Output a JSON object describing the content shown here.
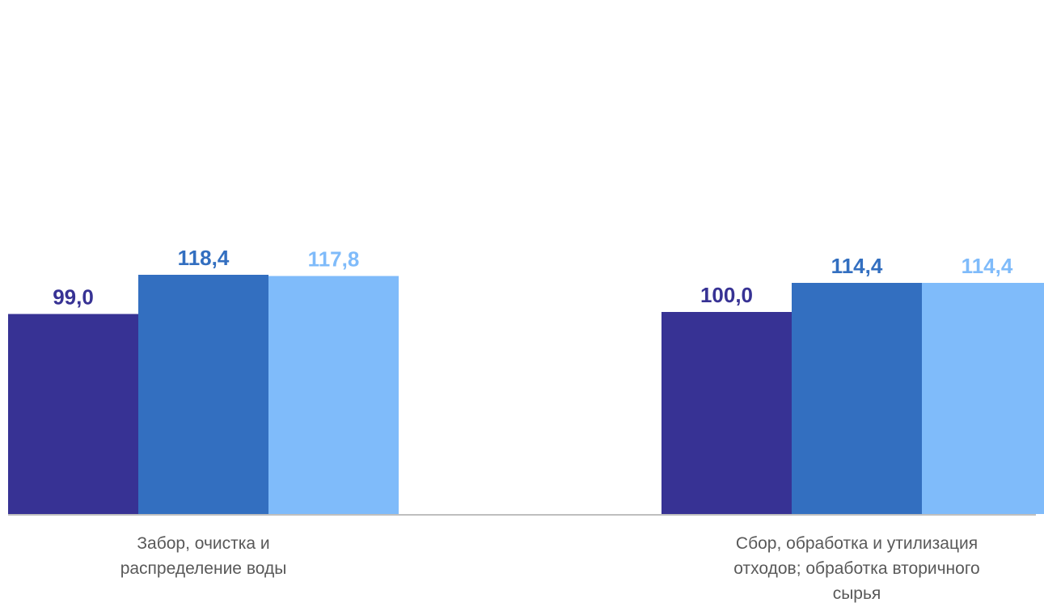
{
  "chart_data": {
    "type": "bar",
    "categories": [
      [
        "Забор, очистка и",
        "распределение воды"
      ],
      [
        "Сбор, обработка и утилизация",
        "отходов; обработка вторичного",
        "сырья"
      ]
    ],
    "series": [
      {
        "color": "#373294",
        "label_color": "#373294",
        "values": [
          99.0,
          100.0
        ],
        "labels": [
          "99,0",
          "100,0"
        ]
      },
      {
        "color": "#336FC0",
        "label_color": "#336FC0",
        "values": [
          118.4,
          114.4
        ],
        "labels": [
          "118,4",
          "114,4"
        ]
      },
      {
        "color": "#7FBBFA",
        "label_color": "#7FBBFA",
        "values": [
          117.8,
          114.4
        ],
        "labels": [
          "117,8",
          "114,4"
        ]
      }
    ],
    "ylim": [
      0,
      130
    ],
    "grid": false,
    "legend": "none",
    "axis_color": "#BFBFBF"
  }
}
